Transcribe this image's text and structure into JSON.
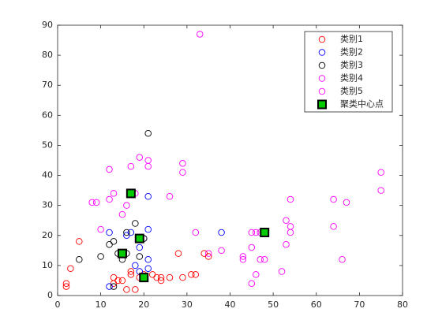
{
  "chart_data": {
    "type": "scatter",
    "xlim": [
      0,
      80
    ],
    "ylim": [
      0,
      90
    ],
    "xticks": [
      0,
      10,
      20,
      30,
      40,
      50,
      60,
      70,
      80
    ],
    "yticks": [
      0,
      10,
      20,
      30,
      40,
      50,
      60,
      70,
      80,
      90
    ],
    "legend": "upper right",
    "series": [
      {
        "name": "类别1",
        "color": "#ff0000",
        "marker": "circle",
        "x": [
          2,
          2,
          3,
          5,
          13,
          13,
          14,
          15,
          16,
          17,
          17,
          18,
          19,
          20,
          22,
          23,
          24,
          24,
          26,
          28,
          29,
          31,
          32,
          34,
          35
        ],
        "values": [
          3,
          4,
          9,
          18,
          6,
          4,
          5,
          5,
          2,
          8,
          7,
          2,
          6,
          7,
          7,
          6,
          5,
          6,
          6,
          14,
          6,
          7,
          7,
          14,
          13
        ]
      },
      {
        "name": "类别2",
        "color": "#0000ff",
        "marker": "circle",
        "x": [
          12,
          12,
          15,
          16,
          17,
          18,
          19,
          20,
          21,
          21,
          21,
          21,
          38,
          19
        ],
        "values": [
          3,
          21,
          14,
          20,
          21,
          10,
          16,
          19,
          33,
          22,
          12,
          9,
          21,
          8
        ]
      },
      {
        "name": "类别3",
        "color": "#000000",
        "marker": "circle",
        "x": [
          5,
          10,
          12,
          13,
          13,
          14,
          15,
          16,
          18,
          19,
          20,
          21,
          16
        ],
        "values": [
          12,
          13,
          17,
          18,
          3,
          14,
          12,
          21,
          24,
          13,
          19,
          54,
          14
        ]
      },
      {
        "name": "类别4",
        "color": "#ff00ff",
        "marker": "circle",
        "x": [
          8,
          9,
          10,
          12,
          12,
          13,
          15,
          16,
          17,
          18,
          19,
          21,
          21,
          26,
          29,
          29,
          33,
          32
        ],
        "values": [
          31,
          31,
          22,
          42,
          32,
          34,
          27,
          30,
          43,
          34,
          46,
          45,
          43,
          33,
          44,
          41,
          87,
          21
        ]
      },
      {
        "name": "类别5",
        "color": "#ff00ff",
        "marker": "circle",
        "x": [
          35,
          38,
          43,
          43,
          45,
          45,
          45,
          46,
          46,
          47,
          47,
          48,
          52,
          53,
          53,
          54,
          54,
          54,
          64,
          64,
          66,
          67,
          75,
          75
        ],
        "values": [
          14,
          15,
          13,
          12,
          16,
          4,
          21,
          7,
          21,
          12,
          21,
          12,
          8,
          25,
          17,
          32,
          23,
          21,
          32,
          23,
          12,
          31,
          41,
          35
        ]
      },
      {
        "name": "聚类中心点",
        "color": "#00cc00",
        "edgecolor": "#000000",
        "marker": "square",
        "x": [
          15,
          17,
          19,
          20,
          48
        ],
        "values": [
          14,
          34,
          19,
          6,
          21
        ]
      }
    ]
  }
}
